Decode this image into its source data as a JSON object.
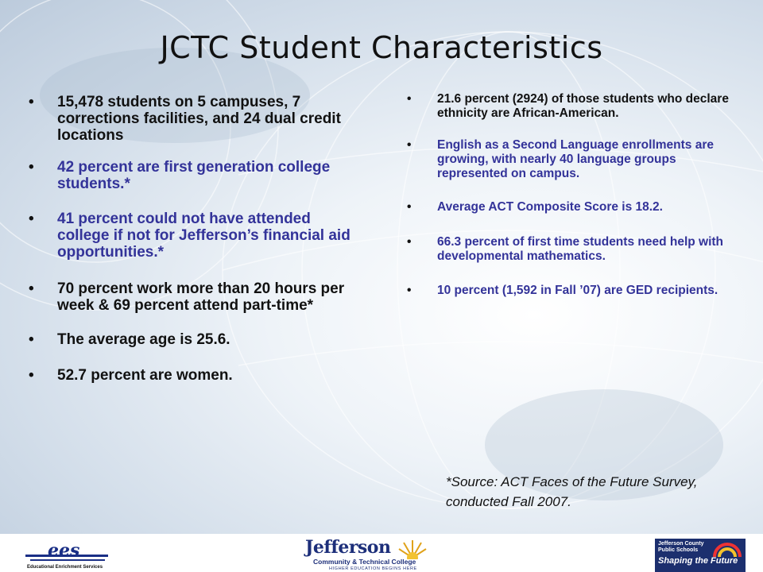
{
  "slide": {
    "title": "JCTC Student Characteristics",
    "left_bullets": [
      {
        "text": "15,478 students on 5 campuses, 7 corrections facilities, and 24 dual credit locations",
        "style": "dark"
      },
      {
        "text": "42 percent are first generation college students.*",
        "style": "blue"
      },
      {
        "text": "41 percent could not have attended college if not for Jefferson’s financial aid opportunities.*",
        "style": "blue"
      },
      {
        "text": "70 percent work more than 20 hours per week & 69 percent attend part-time*",
        "style": "dark"
      },
      {
        "text": "The average age is 25.6.",
        "style": "dark"
      },
      {
        "text": "52.7 percent are women.",
        "style": "dark"
      }
    ],
    "right_bullets": [
      {
        "text": "21.6 percent (2924) of those students who declare ethnicity are African-American.",
        "style": "dark"
      },
      {
        "text": "English as a Second Language enrollments are growing, with nearly 40 language groups represented on campus.",
        "style": "blue"
      },
      {
        "text": "Average ACT Composite Score is 18.2.",
        "style": "blue"
      },
      {
        "text": "66.3 percent of first time students need help with developmental mathematics.",
        "style": "blue"
      },
      {
        "text": "10 percent (1,592 in Fall ’07) are GED recipients.",
        "style": "blue"
      }
    ],
    "source_note": "*Source: ACT Faces of the Future Survey, conducted Fall 2007."
  },
  "footer": {
    "ees_logo": {
      "mark": "ees",
      "subtitle": "Educational Enrichment Services"
    },
    "jefferson_logo": {
      "name": "Jefferson",
      "line1": "Community & Technical College",
      "line2": "HIGHER EDUCATION BEGINS HERE"
    },
    "jcps_logo": {
      "line1": "Jefferson County",
      "line2": "Public Schools",
      "tagline": "Shaping the Future"
    }
  },
  "colors": {
    "dark_text": "#111111",
    "blue_text": "#333399",
    "logo_navy": "#1c2f6e"
  }
}
